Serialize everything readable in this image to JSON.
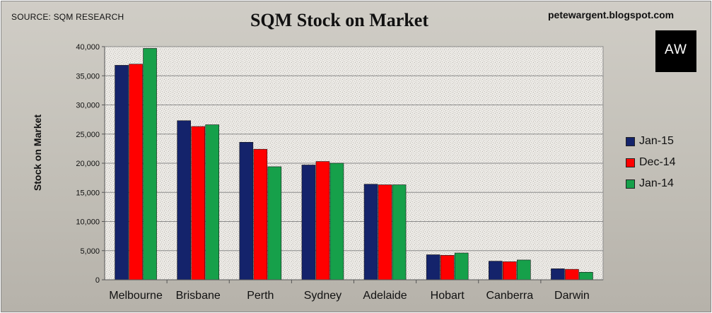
{
  "header": {
    "source": "SOURCE: SQM RESEARCH",
    "blog": "petewargent.blogspot.com",
    "logo_text": "AW"
  },
  "chart_data": {
    "type": "bar",
    "title": "SQM Stock on Market",
    "xlabel": "",
    "ylabel": "Stock on Market",
    "ylim": [
      0,
      40000
    ],
    "ytick_labels": [
      "0",
      "5,000",
      "10,000",
      "15,000",
      "20,000",
      "25,000",
      "30,000",
      "35,000",
      "40,000"
    ],
    "categories": [
      "Melbourne",
      "Brisbane",
      "Perth",
      "Sydney",
      "Adelaide",
      "Hobart",
      "Canberra",
      "Darwin"
    ],
    "series": [
      {
        "name": "Jan-15",
        "color": "#14236b",
        "values": [
          36800,
          27300,
          23600,
          19700,
          16400,
          4300,
          3200,
          1900
        ]
      },
      {
        "name": "Dec-14",
        "color": "#ff0000",
        "values": [
          37000,
          26300,
          22400,
          20300,
          16300,
          4200,
          3100,
          1800
        ]
      },
      {
        "name": "Jan-14",
        "color": "#16a04a",
        "values": [
          39700,
          26600,
          19400,
          20000,
          16300,
          4600,
          3400,
          1300
        ]
      }
    ],
    "grid": true,
    "legend_position": "right"
  }
}
